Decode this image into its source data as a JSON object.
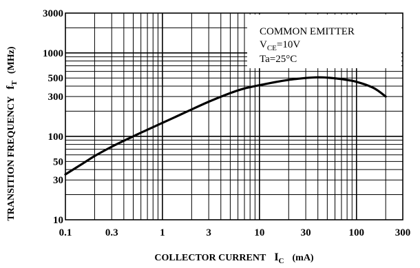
{
  "chart_data": {
    "type": "line",
    "x_scale": "log",
    "y_scale": "log",
    "xlim": [
      0.1,
      300
    ],
    "ylim": [
      10,
      3000
    ],
    "xticks": [
      {
        "value": 0.1,
        "label": "0.1"
      },
      {
        "value": 0.3,
        "label": "0.3"
      },
      {
        "value": 1,
        "label": "1"
      },
      {
        "value": 3,
        "label": "3"
      },
      {
        "value": 10,
        "label": "10"
      },
      {
        "value": 30,
        "label": "30"
      },
      {
        "value": 100,
        "label": "100"
      },
      {
        "value": 300,
        "label": "300"
      }
    ],
    "yticks": [
      {
        "value": 10,
        "label": "10"
      },
      {
        "value": 30,
        "label": "30"
      },
      {
        "value": 50,
        "label": "50"
      },
      {
        "value": 100,
        "label": "100"
      },
      {
        "value": 300,
        "label": "300"
      },
      {
        "value": 500,
        "label": "500"
      },
      {
        "value": 1000,
        "label": "1000"
      },
      {
        "value": 3000,
        "label": "3000"
      }
    ],
    "xlabel": {
      "main": "COLLECTOR CURRENT",
      "symbol": "I",
      "sub": "C",
      "unit": "(mA)"
    },
    "ylabel": {
      "main": "TRANSITION FREQUENCY",
      "symbol": "f",
      "sub": "T",
      "unit": "(MHz)"
    },
    "grid": true,
    "conditions": {
      "line1": "COMMON EMITTER",
      "line2_main": "V",
      "line2_sub": "CE",
      "line2_rest": "=10V",
      "line3": "Ta=25°C"
    },
    "conditions_position": "top-right",
    "series": [
      {
        "x": [
          0.1,
          0.15,
          0.2,
          0.3,
          0.5,
          0.7,
          1,
          1.5,
          2,
          3,
          5,
          7,
          10,
          15,
          20,
          30,
          40,
          50,
          70,
          100,
          150,
          200
        ],
        "y": [
          35,
          47,
          58,
          75,
          100,
          120,
          145,
          180,
          210,
          260,
          330,
          375,
          410,
          450,
          475,
          500,
          510,
          505,
          485,
          450,
          380,
          300
        ]
      }
    ]
  }
}
